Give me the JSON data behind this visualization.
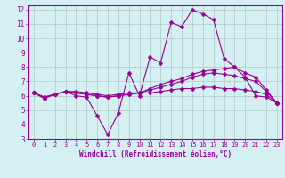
{
  "x_values": [
    0,
    1,
    2,
    3,
    4,
    5,
    6,
    7,
    8,
    9,
    10,
    11,
    12,
    13,
    14,
    15,
    16,
    17,
    18,
    19,
    20,
    21,
    22,
    23
  ],
  "line1": [
    6.2,
    5.8,
    6.1,
    6.3,
    6.0,
    5.9,
    4.6,
    3.3,
    4.8,
    7.6,
    6.0,
    8.7,
    8.3,
    11.1,
    10.8,
    12.0,
    11.7,
    11.3,
    8.6,
    8.0,
    7.3,
    6.0,
    5.9,
    5.5
  ],
  "line2": [
    6.2,
    5.9,
    6.1,
    6.3,
    6.3,
    6.2,
    6.1,
    6.0,
    6.1,
    6.2,
    6.2,
    6.5,
    6.8,
    7.0,
    7.2,
    7.5,
    7.7,
    7.8,
    7.9,
    8.0,
    7.6,
    7.3,
    6.4,
    5.5
  ],
  "line3": [
    6.2,
    5.9,
    6.1,
    6.3,
    6.2,
    6.1,
    6.0,
    5.9,
    6.0,
    6.1,
    6.2,
    6.4,
    6.6,
    6.8,
    7.0,
    7.3,
    7.5,
    7.6,
    7.5,
    7.4,
    7.2,
    7.0,
    6.3,
    5.5
  ],
  "line4": [
    6.2,
    5.9,
    6.1,
    6.3,
    6.2,
    6.1,
    6.0,
    5.9,
    6.0,
    6.1,
    6.2,
    6.2,
    6.3,
    6.4,
    6.5,
    6.5,
    6.6,
    6.6,
    6.5,
    6.5,
    6.4,
    6.3,
    6.1,
    5.5
  ],
  "color": "#990099",
  "bg_color": "#d4f0f0",
  "grid_color": "#b0c8c8",
  "xlabel": "Windchill (Refroidissement éolien,°C)",
  "xlim_min": -0.5,
  "xlim_max": 23.5,
  "ylim_min": 3.0,
  "ylim_max": 12.3,
  "yticks": [
    3,
    4,
    5,
    6,
    7,
    8,
    9,
    10,
    11,
    12
  ],
  "xticks": [
    0,
    1,
    2,
    3,
    4,
    5,
    6,
    7,
    8,
    9,
    10,
    11,
    12,
    13,
    14,
    15,
    16,
    17,
    18,
    19,
    20,
    21,
    22,
    23
  ],
  "marker_size": 2.5,
  "line_width": 0.8,
  "tick_fontsize": 5.0,
  "xlabel_fontsize": 5.5
}
